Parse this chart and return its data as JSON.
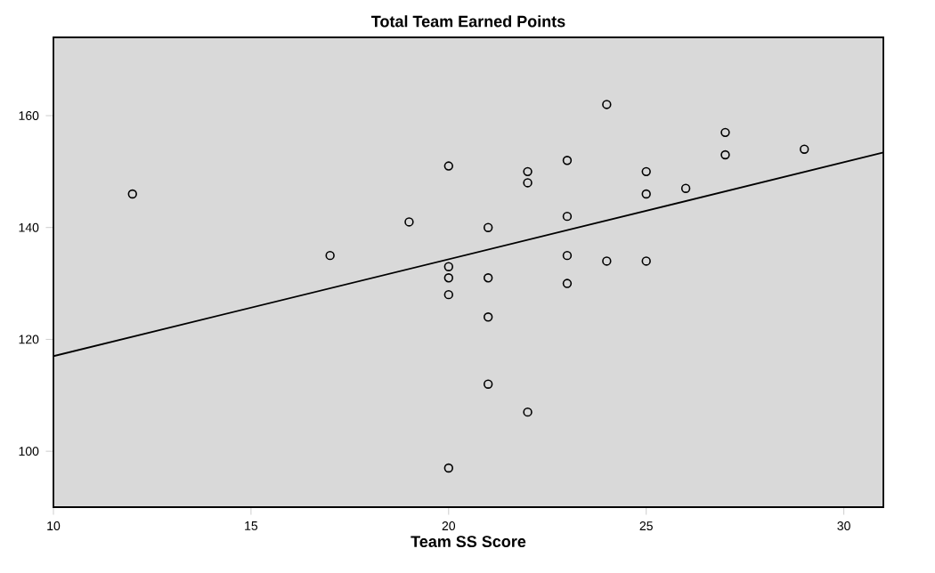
{
  "chart_data": {
    "type": "scatter",
    "title": "Total Team Earned Points",
    "xlabel": "Team SS Score",
    "xlim": [
      10,
      31
    ],
    "ylim": [
      90,
      174
    ],
    "xticks": [
      10,
      15,
      20,
      25,
      30
    ],
    "yticks": [
      100,
      120,
      140,
      160
    ],
    "grid": false,
    "marker": "circle",
    "series": [
      {
        "color": "#000000",
        "x": [
          12,
          17,
          19,
          20,
          20,
          20,
          20,
          20,
          21,
          21,
          21,
          21,
          22,
          22,
          22,
          23,
          23,
          23,
          23,
          24,
          24,
          25,
          25,
          25,
          26,
          27,
          27,
          29
        ],
        "values": [
          146,
          135,
          141,
          151,
          133,
          131,
          128,
          97,
          140,
          131,
          124,
          112,
          150,
          148,
          107,
          152,
          142,
          135,
          130,
          162,
          134,
          150,
          146,
          134,
          147,
          157,
          153,
          154
        ]
      },
      {
        "type": "line",
        "color": "#000000",
        "marker": "none",
        "line_style": "solid",
        "x": [
          10,
          31
        ],
        "values": [
          117,
          153.4
        ]
      }
    ]
  }
}
